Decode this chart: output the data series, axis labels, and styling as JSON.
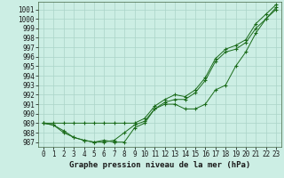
{
  "title": "Graphe pression niveau de la mer (hPa)",
  "background_color": "#cceee4",
  "grid_color": "#aad4c8",
  "line_color": "#1a6b1a",
  "x_values": [
    0,
    1,
    2,
    3,
    4,
    5,
    6,
    7,
    8,
    9,
    10,
    11,
    12,
    13,
    14,
    15,
    16,
    17,
    18,
    19,
    20,
    21,
    22,
    23
  ],
  "series1": [
    989.0,
    988.8,
    988.0,
    987.5,
    987.2,
    987.0,
    987.2,
    987.0,
    987.0,
    988.5,
    989.0,
    990.5,
    991.0,
    991.0,
    990.5,
    990.5,
    991.0,
    992.5,
    993.0,
    995.0,
    996.5,
    998.5,
    1000.0,
    1001.0
  ],
  "series2": [
    989.0,
    988.8,
    988.2,
    987.5,
    987.2,
    987.0,
    987.0,
    987.2,
    988.0,
    988.8,
    989.2,
    990.5,
    991.2,
    991.5,
    991.5,
    992.2,
    993.5,
    995.5,
    996.5,
    996.8,
    997.5,
    999.0,
    1000.0,
    1001.2
  ],
  "series3": [
    989.0,
    989.0,
    989.0,
    989.0,
    989.0,
    989.0,
    989.0,
    989.0,
    989.0,
    989.0,
    989.5,
    990.8,
    991.5,
    992.0,
    991.8,
    992.5,
    993.8,
    995.8,
    996.8,
    997.2,
    997.8,
    999.5,
    1000.5,
    1001.5
  ],
  "ylim": [
    986.5,
    1001.8
  ],
  "yticks": [
    987,
    988,
    989,
    990,
    991,
    992,
    993,
    994,
    995,
    996,
    997,
    998,
    999,
    1000,
    1001
  ],
  "xlim": [
    -0.5,
    23.5
  ],
  "tick_fontsize": 5.5,
  "title_fontsize": 6.5
}
